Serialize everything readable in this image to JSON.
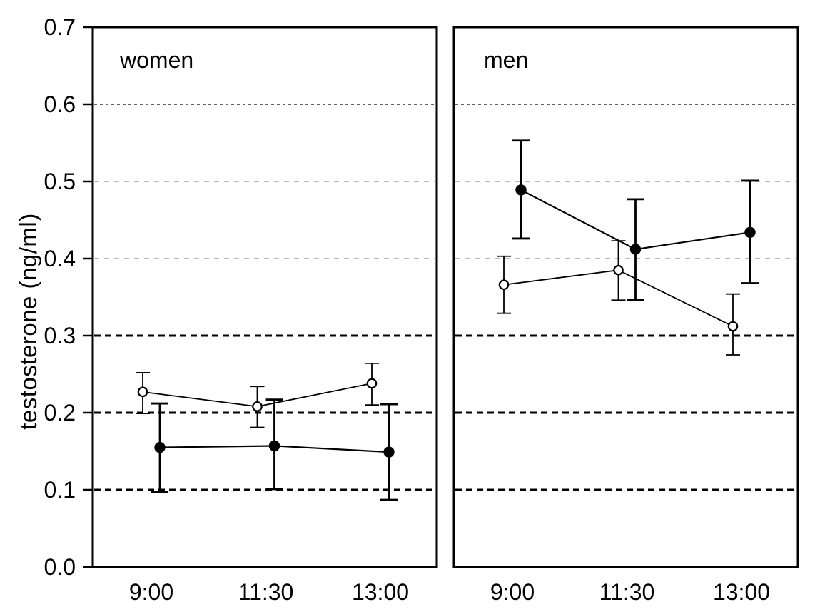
{
  "colors": {
    "foreground": "#000000",
    "background": "#ffffff",
    "grid_bold": "#000000",
    "grid_medium": "#4a4a4a",
    "grid_light": "#a3a3a3"
  },
  "chart_data": {
    "type": "line",
    "title": "",
    "categories": [
      "9:00",
      "11:30",
      "13:00"
    ],
    "ylabel": "testosterone (ng/ml)",
    "ylim": [
      0.0,
      0.7
    ],
    "y_tick_labels": [
      "0.0",
      "0.1",
      "0.2",
      "0.3",
      "0.4",
      "0.5",
      "0.6",
      "0.7"
    ],
    "grid": "horizontal-dashed",
    "legend": "none",
    "gridlines": [
      {
        "value": 0.1,
        "style": "bold"
      },
      {
        "value": 0.2,
        "style": "bold"
      },
      {
        "value": 0.3,
        "style": "bold"
      },
      {
        "value": 0.4,
        "style": "light"
      },
      {
        "value": 0.5,
        "style": "light"
      },
      {
        "value": 0.6,
        "style": "medium"
      }
    ],
    "panels": [
      {
        "label": "women",
        "series": [
          {
            "name": "open-circle-series",
            "marker": "open",
            "means": [
              0.227,
              0.208,
              0.238
            ],
            "ci_lower": [
              0.199,
              0.181,
              0.21
            ],
            "ci_upper": [
              0.252,
              0.234,
              0.264
            ]
          },
          {
            "name": "filled-circle-series",
            "marker": "filled",
            "means": [
              0.155,
              0.157,
              0.149
            ],
            "ci_lower": [
              0.097,
              0.101,
              0.087
            ],
            "ci_upper": [
              0.212,
              0.217,
              0.211
            ]
          }
        ]
      },
      {
        "label": "men",
        "series": [
          {
            "name": "open-circle-series",
            "marker": "open",
            "means": [
              0.366,
              0.385,
              0.312
            ],
            "ci_lower": [
              0.329,
              0.346,
              0.275
            ],
            "ci_upper": [
              0.403,
              0.423,
              0.354
            ]
          },
          {
            "name": "filled-circle-series",
            "marker": "filled",
            "means": [
              0.489,
              0.412,
              0.434
            ],
            "ci_lower": [
              0.426,
              0.346,
              0.368
            ],
            "ci_upper": [
              0.553,
              0.477,
              0.501
            ]
          }
        ]
      }
    ]
  }
}
